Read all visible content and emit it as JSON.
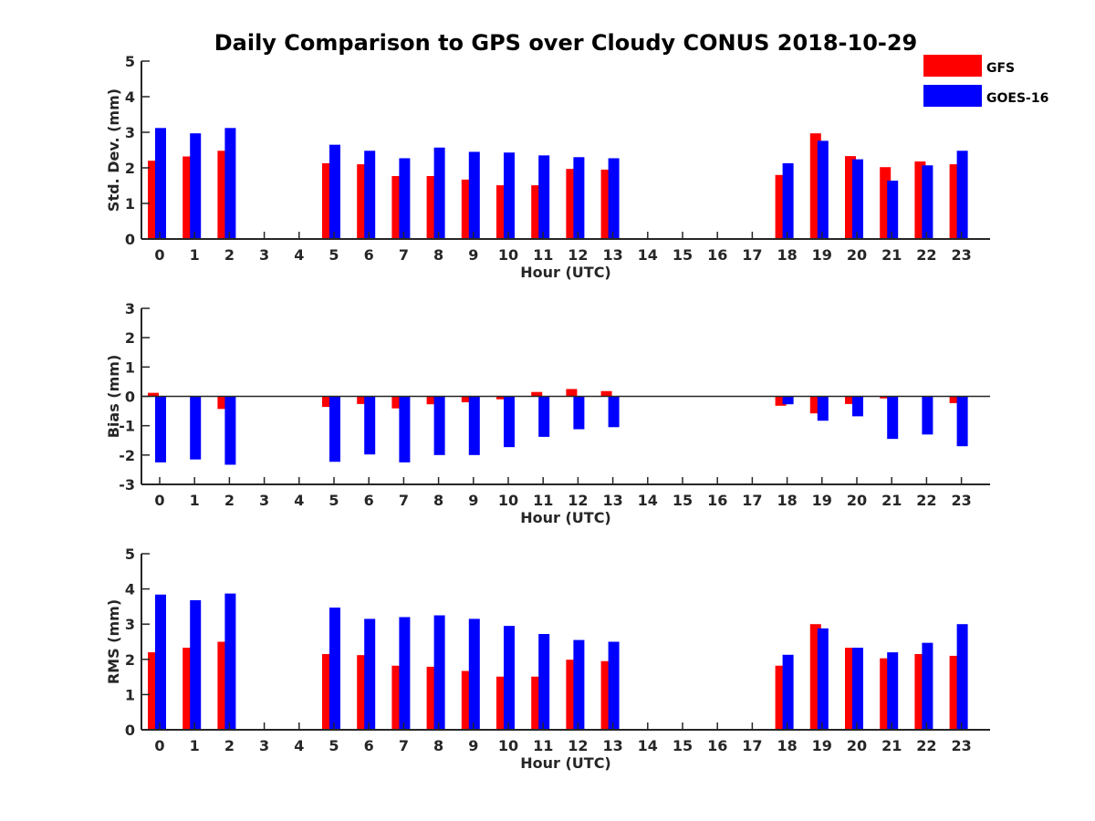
{
  "chart_data": {
    "title": "Daily Comparison to GPS over Cloudy CONUS 2018-10-29",
    "legend": {
      "placement": "top-right",
      "entries": [
        {
          "name": "GFS",
          "color": "#ff0000"
        },
        {
          "name": "GOES-16",
          "color": "#0000ff"
        }
      ]
    },
    "panels": [
      {
        "type": "bar",
        "ylabel": "Std. Dev. (mm)",
        "xlabel": "Hour (UTC)",
        "ylim": [
          0,
          5
        ],
        "yticks": [
          "0",
          "1",
          "2",
          "3",
          "4",
          "5"
        ],
        "categories": [
          "0",
          "1",
          "2",
          "3",
          "4",
          "5",
          "6",
          "7",
          "8",
          "9",
          "10",
          "11",
          "12",
          "13",
          "14",
          "15",
          "16",
          "17",
          "18",
          "19",
          "20",
          "21",
          "22",
          "23"
        ],
        "zero_line": false,
        "series": [
          {
            "name": "GFS",
            "color": "#ff0000",
            "values": [
              2.2,
              2.32,
              2.48,
              null,
              null,
              2.13,
              2.1,
              1.77,
              1.77,
              1.67,
              1.51,
              1.51,
              1.97,
              1.95,
              null,
              null,
              null,
              null,
              1.8,
              2.97,
              2.33,
              2.02,
              2.18,
              2.1
            ]
          },
          {
            "name": "GOES-16",
            "color": "#0000ff",
            "values": [
              3.12,
              2.97,
              3.12,
              null,
              null,
              2.65,
              2.48,
              2.27,
              2.57,
              2.45,
              2.43,
              2.35,
              2.3,
              2.27,
              null,
              null,
              null,
              null,
              2.13,
              2.76,
              2.24,
              1.64,
              2.07,
              2.48
            ]
          }
        ]
      },
      {
        "type": "bar",
        "ylabel": "Bias (mm)",
        "xlabel": "Hour (UTC)",
        "ylim": [
          -3,
          3
        ],
        "yticks": [
          "-3",
          "-2",
          "-1",
          "0",
          "1",
          "2",
          "3"
        ],
        "categories": [
          "0",
          "1",
          "2",
          "3",
          "4",
          "5",
          "6",
          "7",
          "8",
          "9",
          "10",
          "11",
          "12",
          "13",
          "14",
          "15",
          "16",
          "17",
          "18",
          "19",
          "20",
          "21",
          "22",
          "23"
        ],
        "zero_line": true,
        "series": [
          {
            "name": "GFS",
            "color": "#ff0000",
            "values": [
              0.12,
              0,
              -0.43,
              null,
              null,
              -0.36,
              -0.26,
              -0.41,
              -0.27,
              -0.2,
              -0.1,
              0.15,
              0.25,
              0.18,
              null,
              null,
              null,
              null,
              -0.32,
              -0.58,
              -0.26,
              -0.07,
              0,
              -0.23
            ]
          },
          {
            "name": "GOES-16",
            "color": "#0000ff",
            "values": [
              -2.25,
              -2.15,
              -2.33,
              null,
              null,
              -2.23,
              -1.98,
              -2.25,
              -2.0,
              -2.0,
              -1.73,
              -1.38,
              -1.12,
              -1.05,
              null,
              null,
              null,
              null,
              -0.27,
              -0.83,
              -0.68,
              -1.45,
              -1.3,
              -1.7
            ]
          }
        ]
      },
      {
        "type": "bar",
        "ylabel": "RMS (mm)",
        "xlabel": "Hour (UTC)",
        "ylim": [
          0,
          5
        ],
        "yticks": [
          "0",
          "1",
          "2",
          "3",
          "4",
          "5"
        ],
        "categories": [
          "0",
          "1",
          "2",
          "3",
          "4",
          "5",
          "6",
          "7",
          "8",
          "9",
          "10",
          "11",
          "12",
          "13",
          "14",
          "15",
          "16",
          "17",
          "18",
          "19",
          "20",
          "21",
          "22",
          "23"
        ],
        "zero_line": false,
        "series": [
          {
            "name": "GFS",
            "color": "#ff0000",
            "values": [
              2.2,
              2.33,
              2.5,
              null,
              null,
              2.15,
              2.12,
              1.82,
              1.79,
              1.67,
              1.51,
              1.51,
              1.99,
              1.95,
              null,
              null,
              null,
              null,
              1.82,
              3.0,
              2.33,
              2.03,
              2.15,
              2.1
            ]
          },
          {
            "name": "GOES-16",
            "color": "#0000ff",
            "values": [
              3.84,
              3.68,
              3.87,
              null,
              null,
              3.47,
              3.15,
              3.2,
              3.25,
              3.15,
              2.95,
              2.72,
              2.55,
              2.5,
              null,
              null,
              null,
              null,
              2.13,
              2.88,
              2.33,
              2.2,
              2.47,
              3.0
            ]
          }
        ]
      }
    ]
  }
}
